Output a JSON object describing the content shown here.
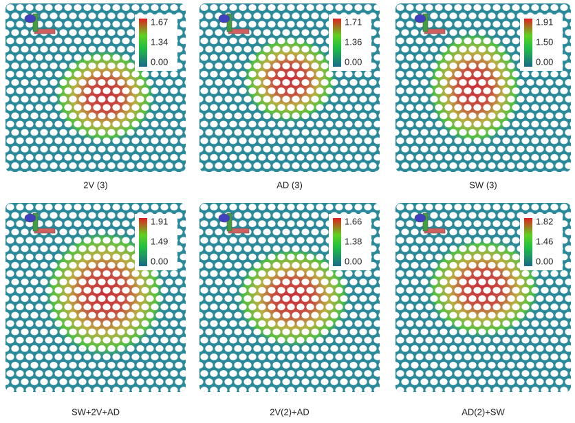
{
  "panels": [
    {
      "label": "2V (3)",
      "colorbar": {
        "max": "1.67",
        "mid": "1.34",
        "min": "0.00"
      }
    },
    {
      "label": "AD (3)",
      "colorbar": {
        "max": "1.71",
        "mid": "1.36",
        "min": "0.00"
      }
    },
    {
      "label": "SW (3)",
      "colorbar": {
        "max": "1.91",
        "mid": "1.50",
        "min": "0.00"
      }
    },
    {
      "label": "SW+2V+AD",
      "colorbar": {
        "max": "1.91",
        "mid": "1.49",
        "min": "0.00"
      }
    },
    {
      "label": "2V(2)+AD",
      "colorbar": {
        "max": "1.66",
        "mid": "1.38",
        "min": "0.00"
      }
    },
    {
      "label": "AD(2)+SW",
      "colorbar": {
        "max": "1.82",
        "mid": "1.46",
        "min": "0.00"
      }
    }
  ]
}
